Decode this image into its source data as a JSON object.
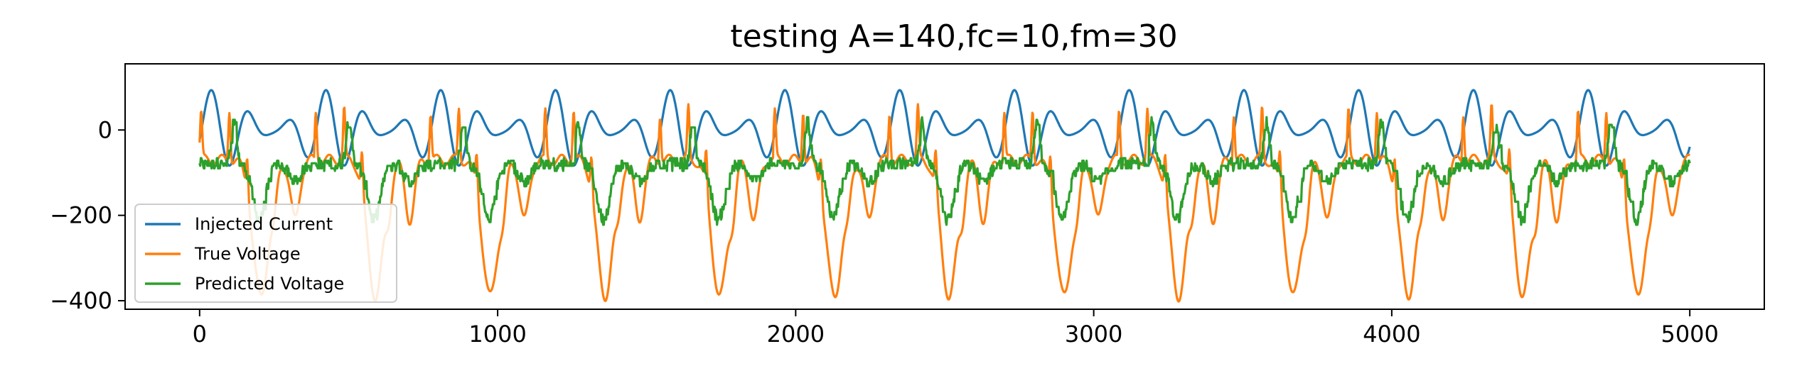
{
  "chart_data": {
    "type": "line",
    "title": "testing A=140,fc=10,fm=30",
    "xlabel": "",
    "ylabel": "",
    "xlim": [
      -250,
      5250
    ],
    "ylim": [
      -420,
      155
    ],
    "xticks": [
      0,
      1000,
      2000,
      3000,
      4000,
      5000
    ],
    "yticks": [
      0,
      -200,
      -400
    ],
    "xtick_labels": [
      "0",
      "1000",
      "2000",
      "3000",
      "4000",
      "5000"
    ],
    "ytick_labels": [
      "0",
      "−200",
      "−400"
    ],
    "grid": false,
    "legend_position": "lower-left",
    "x_range": [
      0,
      5000
    ],
    "series": [
      {
        "name": "Injected Current",
        "color": "#1f77b4",
        "description": "carrier-modulated sinusoid, repeats every ~385 samples",
        "amplitude": 130,
        "period": 385,
        "min": -130,
        "max": 130
      },
      {
        "name": "True Voltage",
        "color": "#ff7f0e",
        "description": "resting level near -70 with upward spikes to ~+50 and deep troughs to ~-390",
        "min": -395,
        "max": 52,
        "rest": -70
      },
      {
        "name": "Predicted Voltage",
        "color": "#2ca02c",
        "description": "noisy step-like trace around -80, peaks ~+30, troughs ~-210",
        "min": -215,
        "max": 32,
        "rest": -75
      }
    ]
  }
}
